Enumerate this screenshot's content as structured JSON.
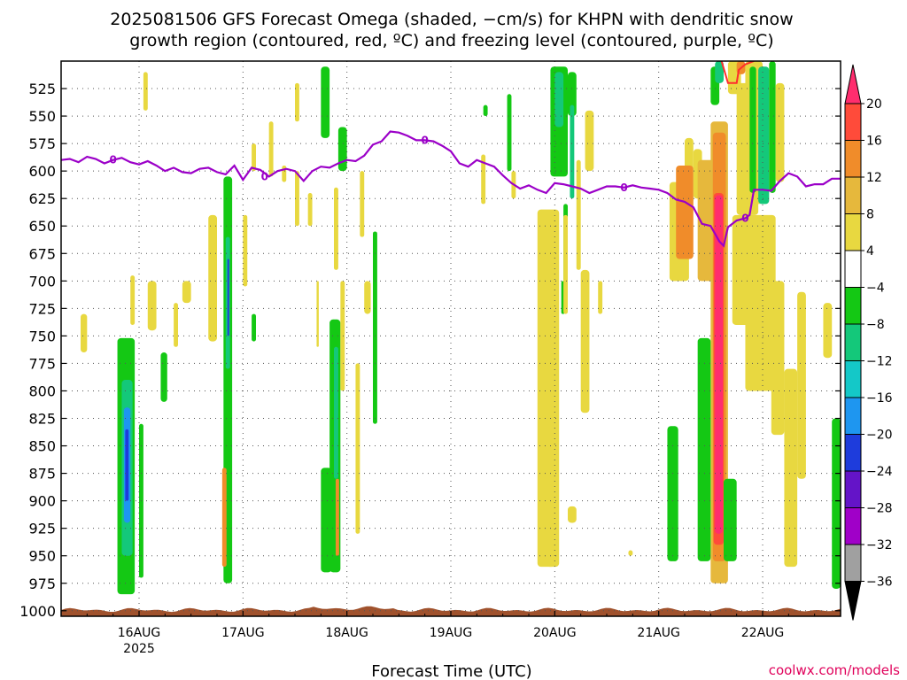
{
  "title": {
    "line1": "2025081506 GFS Forecast Omega (shaded, −cm/s) for KHPN with dendritic snow",
    "line2": "growth region (contoured, red, ºC) and freezing level (contoured, purple, ºC)"
  },
  "credit": "coolwx.com/models",
  "chart_data": {
    "type": "heatmap",
    "title": "2025081506 GFS Forecast Omega (shaded, −cm/s) for KHPN with dendritic snow growth region (contoured, red, ºC) and freezing level (contoured, purple, ºC)",
    "xlabel": "Forecast Time (UTC)",
    "ylabel": "",
    "x_unit": "hours since 2025-08-15 06Z",
    "xlim": [
      0,
      180
    ],
    "ylim": [
      1005,
      500
    ],
    "y_ticks": [
      525,
      550,
      575,
      600,
      625,
      650,
      675,
      700,
      725,
      750,
      775,
      800,
      825,
      850,
      875,
      900,
      925,
      950,
      975,
      1000
    ],
    "x_ticks": [
      {
        "x": 18,
        "label": "16AUG",
        "sublabel": "2025"
      },
      {
        "x": 42,
        "label": "17AUG",
        "sublabel": ""
      },
      {
        "x": 66,
        "label": "18AUG",
        "sublabel": ""
      },
      {
        "x": 90,
        "label": "19AUG",
        "sublabel": ""
      },
      {
        "x": 114,
        "label": "20AUG",
        "sublabel": ""
      },
      {
        "x": 138,
        "label": "21AUG",
        "sublabel": ""
      },
      {
        "x": 162,
        "label": "22AUG",
        "sublabel": ""
      }
    ],
    "grid": true,
    "colorbar": {
      "levels": [
        20,
        16,
        12,
        8,
        4,
        -4,
        -8,
        -12,
        -16,
        -20,
        -24,
        -28,
        -32,
        -36
      ],
      "colors": [
        "#ff2d6e",
        "#ff4b3a",
        "#f08c2a",
        "#e6b83c",
        "#e8d840",
        "#ffffff",
        "#14c814",
        "#14c87a",
        "#14c8c8",
        "#1e96f0",
        "#1e3cdc",
        "#6414c8",
        "#a000c8",
        "#a0a0a0",
        "#000000"
      ]
    },
    "freezing_level": {
      "label": "0",
      "color": "#9b00c8",
      "points": [
        [
          0,
          590
        ],
        [
          2,
          589
        ],
        [
          4,
          592
        ],
        [
          6,
          587
        ],
        [
          8,
          589
        ],
        [
          10,
          593
        ],
        [
          12,
          590
        ],
        [
          14,
          588
        ],
        [
          16,
          592
        ],
        [
          18,
          594
        ],
        [
          20,
          591
        ],
        [
          22,
          595
        ],
        [
          24,
          600
        ],
        [
          26,
          597
        ],
        [
          28,
          601
        ],
        [
          30,
          602
        ],
        [
          32,
          598
        ],
        [
          34,
          597
        ],
        [
          36,
          601
        ],
        [
          38,
          603
        ],
        [
          40,
          595
        ],
        [
          42,
          608
        ],
        [
          44,
          597
        ],
        [
          46,
          599
        ],
        [
          48,
          605
        ],
        [
          50,
          600
        ],
        [
          52,
          598
        ],
        [
          54,
          600
        ],
        [
          56,
          609
        ],
        [
          58,
          600
        ],
        [
          60,
          596
        ],
        [
          62,
          597
        ],
        [
          64,
          593
        ],
        [
          66,
          590
        ],
        [
          68,
          591
        ],
        [
          70,
          586
        ],
        [
          72,
          576
        ],
        [
          74,
          573
        ],
        [
          76,
          564
        ],
        [
          78,
          565
        ],
        [
          80,
          568
        ],
        [
          82,
          572
        ],
        [
          84,
          572
        ],
        [
          86,
          573
        ],
        [
          88,
          577
        ],
        [
          90,
          582
        ],
        [
          92,
          593
        ],
        [
          94,
          596
        ],
        [
          96,
          590
        ],
        [
          98,
          593
        ],
        [
          100,
          596
        ],
        [
          102,
          604
        ],
        [
          104,
          611
        ],
        [
          106,
          616
        ],
        [
          108,
          613
        ],
        [
          110,
          617
        ],
        [
          112,
          620
        ],
        [
          114,
          611
        ],
        [
          116,
          612
        ],
        [
          118,
          614
        ],
        [
          120,
          616
        ],
        [
          122,
          620
        ],
        [
          124,
          617
        ],
        [
          126,
          614
        ],
        [
          128,
          614
        ],
        [
          130,
          615
        ],
        [
          132,
          613
        ],
        [
          134,
          615
        ],
        [
          136,
          616
        ],
        [
          138,
          617
        ],
        [
          140,
          620
        ],
        [
          142,
          626
        ],
        [
          144,
          628
        ],
        [
          146,
          633
        ],
        [
          148,
          648
        ],
        [
          150,
          650
        ],
        [
          152,
          664
        ],
        [
          153,
          668
        ],
        [
          154,
          651
        ],
        [
          156,
          645
        ],
        [
          158,
          643
        ],
        [
          159,
          640
        ],
        [
          160,
          617
        ],
        [
          162,
          617
        ],
        [
          164,
          618
        ],
        [
          166,
          609
        ],
        [
          168,
          602
        ],
        [
          170,
          605
        ],
        [
          172,
          614
        ],
        [
          174,
          612
        ],
        [
          176,
          612
        ],
        [
          178,
          607
        ],
        [
          180,
          607
        ]
      ]
    },
    "dendritic_zone": {
      "color": "#ff2d2d",
      "points": [
        [
          152.5,
          500
        ],
        [
          153.5,
          513
        ],
        [
          154,
          520
        ],
        [
          156,
          520
        ],
        [
          156.5,
          508
        ],
        [
          158,
          503
        ],
        [
          160,
          500
        ]
      ]
    },
    "terrain_color": "#a0522d",
    "cells": [
      {
        "x0": 13,
        "x1": 17,
        "p0": 752,
        "p1": 985,
        "c": "#14c814"
      },
      {
        "x0": 14,
        "x1": 16.5,
        "p0": 790,
        "p1": 950,
        "c": "#14c87a"
      },
      {
        "x0": 14.5,
        "x1": 16,
        "p0": 815,
        "p1": 920,
        "c": "#1e96f0"
      },
      {
        "x0": 14.8,
        "x1": 15.6,
        "p0": 835,
        "p1": 900,
        "c": "#1e3cdc"
      },
      {
        "x0": 18,
        "x1": 19,
        "p0": 830,
        "p1": 970,
        "c": "#14c814"
      },
      {
        "x0": 23,
        "x1": 24.5,
        "p0": 765,
        "p1": 810,
        "c": "#14c814"
      },
      {
        "x0": 4.5,
        "x1": 6,
        "p0": 730,
        "p1": 765,
        "c": "#e8d840"
      },
      {
        "x0": 16,
        "x1": 17,
        "p0": 695,
        "p1": 740,
        "c": "#e8d840"
      },
      {
        "x0": 20,
        "x1": 22,
        "p0": 700,
        "p1": 745,
        "c": "#e8d840"
      },
      {
        "x0": 26,
        "x1": 27,
        "p0": 720,
        "p1": 760,
        "c": "#e8d840"
      },
      {
        "x0": 28,
        "x1": 30,
        "p0": 700,
        "p1": 720,
        "c": "#e8d840"
      },
      {
        "x0": 19,
        "x1": 20,
        "p0": 510,
        "p1": 545,
        "c": "#e8d840"
      },
      {
        "x0": 37.5,
        "x1": 39.5,
        "p0": 605,
        "p1": 975,
        "c": "#14c814"
      },
      {
        "x0": 38,
        "x1": 39,
        "p0": 660,
        "p1": 780,
        "c": "#14c87a"
      },
      {
        "x0": 38.4,
        "x1": 38.8,
        "p0": 680,
        "p1": 750,
        "c": "#1e3cdc"
      },
      {
        "x0": 37.2,
        "x1": 38.2,
        "p0": 870,
        "p1": 960,
        "c": "#f08c2a"
      },
      {
        "x0": 42,
        "x1": 43,
        "p0": 640,
        "p1": 705,
        "c": "#e8d840"
      },
      {
        "x0": 44,
        "x1": 45,
        "p0": 730,
        "p1": 755,
        "c": "#14c814"
      },
      {
        "x0": 34,
        "x1": 36,
        "p0": 640,
        "p1": 755,
        "c": "#e8d840"
      },
      {
        "x0": 48,
        "x1": 49,
        "p0": 555,
        "p1": 605,
        "c": "#e8d840"
      },
      {
        "x0": 54,
        "x1": 55,
        "p0": 520,
        "p1": 555,
        "c": "#e8d840"
      },
      {
        "x0": 44,
        "x1": 45,
        "p0": 575,
        "p1": 600,
        "c": "#e8d840"
      },
      {
        "x0": 51,
        "x1": 52,
        "p0": 595,
        "p1": 610,
        "c": "#e8d840"
      },
      {
        "x0": 54,
        "x1": 55,
        "p0": 600,
        "p1": 650,
        "c": "#e8d840"
      },
      {
        "x0": 60,
        "x1": 62,
        "p0": 505,
        "p1": 570,
        "c": "#14c814"
      },
      {
        "x0": 64,
        "x1": 66,
        "p0": 560,
        "p1": 600,
        "c": "#14c814"
      },
      {
        "x0": 60,
        "x1": 62.5,
        "p0": 870,
        "p1": 965,
        "c": "#14c814"
      },
      {
        "x0": 62,
        "x1": 64.5,
        "p0": 735,
        "p1": 965,
        "c": "#14c814"
      },
      {
        "x0": 63,
        "x1": 64,
        "p0": 760,
        "p1": 880,
        "c": "#14c87a"
      },
      {
        "x0": 63.4,
        "x1": 64.2,
        "p0": 880,
        "p1": 950,
        "c": "#f08c2a"
      },
      {
        "x0": 64.5,
        "x1": 65.5,
        "p0": 700,
        "p1": 800,
        "c": "#e8d840"
      },
      {
        "x0": 63,
        "x1": 64,
        "p0": 615,
        "p1": 690,
        "c": "#e8d840"
      },
      {
        "x0": 57,
        "x1": 58,
        "p0": 620,
        "p1": 650,
        "c": "#e8d840"
      },
      {
        "x0": 59,
        "x1": 59.5,
        "p0": 700,
        "p1": 760,
        "c": "#e8d840"
      },
      {
        "x0": 68,
        "x1": 69,
        "p0": 775,
        "p1": 930,
        "c": "#e8d840"
      },
      {
        "x0": 72,
        "x1": 73,
        "p0": 655,
        "p1": 830,
        "c": "#14c814"
      },
      {
        "x0": 70,
        "x1": 71.5,
        "p0": 700,
        "p1": 730,
        "c": "#e8d840"
      },
      {
        "x0": 69,
        "x1": 70,
        "p0": 600,
        "p1": 660,
        "c": "#e8d840"
      },
      {
        "x0": 113,
        "x1": 117,
        "p0": 505,
        "p1": 605,
        "c": "#14c814"
      },
      {
        "x0": 114,
        "x1": 116,
        "p0": 510,
        "p1": 560,
        "c": "#14c87a"
      },
      {
        "x0": 117,
        "x1": 119,
        "p0": 510,
        "p1": 550,
        "c": "#14c814"
      },
      {
        "x0": 117.5,
        "x1": 118.5,
        "p0": 540,
        "p1": 625,
        "c": "#14c87a"
      },
      {
        "x0": 116,
        "x1": 117,
        "p0": 630,
        "p1": 700,
        "c": "#14c814"
      },
      {
        "x0": 115.5,
        "x1": 116.3,
        "p0": 700,
        "p1": 730,
        "c": "#14c814"
      },
      {
        "x0": 103,
        "x1": 104,
        "p0": 530,
        "p1": 600,
        "c": "#14c814"
      },
      {
        "x0": 104,
        "x1": 105,
        "p0": 600,
        "p1": 625,
        "c": "#e8d840"
      },
      {
        "x0": 110,
        "x1": 115,
        "p0": 635,
        "p1": 960,
        "c": "#e8d840"
      },
      {
        "x0": 116,
        "x1": 117,
        "p0": 640,
        "p1": 730,
        "c": "#e8d840"
      },
      {
        "x0": 119,
        "x1": 120,
        "p0": 590,
        "p1": 690,
        "c": "#e8d840"
      },
      {
        "x0": 121,
        "x1": 123,
        "p0": 545,
        "p1": 600,
        "c": "#e8d840"
      },
      {
        "x0": 120,
        "x1": 122,
        "p0": 690,
        "p1": 820,
        "c": "#e8d840"
      },
      {
        "x0": 124,
        "x1": 125,
        "p0": 700,
        "p1": 730,
        "c": "#e8d840"
      },
      {
        "x0": 112,
        "x1": 114,
        "p0": 920,
        "p1": 960,
        "c": "#e8d840"
      },
      {
        "x0": 97.5,
        "x1": 98.5,
        "p0": 540,
        "p1": 550,
        "c": "#14c814"
      },
      {
        "x0": 97,
        "x1": 98,
        "p0": 585,
        "p1": 630,
        "c": "#e8d840"
      },
      {
        "x0": 131,
        "x1": 132,
        "p0": 945,
        "p1": 950,
        "c": "#e8d840"
      },
      {
        "x0": 117,
        "x1": 119,
        "p0": 905,
        "p1": 920,
        "c": "#e8d840"
      },
      {
        "x0": 144,
        "x1": 146,
        "p0": 570,
        "p1": 630,
        "c": "#e8d840"
      },
      {
        "x0": 140.5,
        "x1": 145,
        "p0": 610,
        "p1": 700,
        "c": "#e8d840"
      },
      {
        "x0": 142,
        "x1": 146,
        "p0": 595,
        "p1": 680,
        "c": "#f08c2a"
      },
      {
        "x0": 146,
        "x1": 148,
        "p0": 580,
        "p1": 625,
        "c": "#e8d840"
      },
      {
        "x0": 147,
        "x1": 153,
        "p0": 590,
        "p1": 700,
        "c": "#e6b83c"
      },
      {
        "x0": 150,
        "x1": 152,
        "p0": 505,
        "p1": 540,
        "c": "#14c814"
      },
      {
        "x0": 151,
        "x1": 153,
        "p0": 500,
        "p1": 520,
        "c": "#14c87a"
      },
      {
        "x0": 150,
        "x1": 154,
        "p0": 555,
        "p1": 975,
        "c": "#e6b83c"
      },
      {
        "x0": 150.5,
        "x1": 153.5,
        "p0": 565,
        "p1": 955,
        "c": "#f08c2a"
      },
      {
        "x0": 150.7,
        "x1": 153,
        "p0": 620,
        "p1": 940,
        "c": "#ff4b3a"
      },
      {
        "x0": 151,
        "x1": 152.8,
        "p0": 622,
        "p1": 930,
        "c": "#ff2d6e"
      },
      {
        "x0": 147,
        "x1": 150,
        "p0": 752,
        "p1": 955,
        "c": "#14c814"
      },
      {
        "x0": 140,
        "x1": 142.5,
        "p0": 832,
        "p1": 955,
        "c": "#14c814"
      },
      {
        "x0": 153,
        "x1": 156,
        "p0": 880,
        "p1": 955,
        "c": "#14c814"
      },
      {
        "x0": 154,
        "x1": 157,
        "p0": 500,
        "p1": 530,
        "c": "#e8d840"
      },
      {
        "x0": 156,
        "x1": 158,
        "p0": 500,
        "p1": 512,
        "c": "#f08c2a"
      },
      {
        "x0": 156,
        "x1": 161,
        "p0": 520,
        "p1": 640,
        "c": "#e8d840"
      },
      {
        "x0": 158,
        "x1": 162,
        "p0": 500,
        "p1": 630,
        "c": "#e8d840"
      },
      {
        "x0": 159,
        "x1": 160.5,
        "p0": 505,
        "p1": 620,
        "c": "#14c814"
      },
      {
        "x0": 161,
        "x1": 163.5,
        "p0": 505,
        "p1": 630,
        "c": "#14c87a"
      },
      {
        "x0": 163.5,
        "x1": 165,
        "p0": 500,
        "p1": 620,
        "c": "#14c814"
      },
      {
        "x0": 165,
        "x1": 167,
        "p0": 520,
        "p1": 610,
        "c": "#e8d840"
      },
      {
        "x0": 155,
        "x1": 159,
        "p0": 640,
        "p1": 740,
        "c": "#e8d840"
      },
      {
        "x0": 158,
        "x1": 165,
        "p0": 640,
        "p1": 800,
        "c": "#e8d840"
      },
      {
        "x0": 164,
        "x1": 167,
        "p0": 700,
        "p1": 840,
        "c": "#e8d840"
      },
      {
        "x0": 167,
        "x1": 170,
        "p0": 780,
        "p1": 960,
        "c": "#e8d840"
      },
      {
        "x0": 170,
        "x1": 172,
        "p0": 710,
        "p1": 880,
        "c": "#e8d840"
      },
      {
        "x0": 176,
        "x1": 178,
        "p0": 720,
        "p1": 770,
        "c": "#e8d840"
      },
      {
        "x0": 178,
        "x1": 180,
        "p0": 825,
        "p1": 980,
        "c": "#14c814"
      }
    ]
  }
}
